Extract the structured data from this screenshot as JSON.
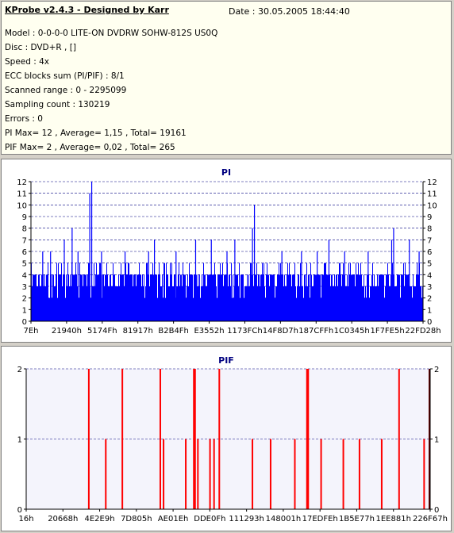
{
  "header": {
    "title": "KProbe v2.4.3 - Designed by Karr",
    "date": "Date : 30.05.2005 18:44:40",
    "lines": [
      "Model : 0-0-0-0 LITE-ON DVDRW SOHW-812S  US0Q",
      "Disc : DVD+R ,  []",
      "Speed : 4x",
      "ECC blocks sum (PI/PIF) : 8/1",
      "Scanned range : 0 - 2295099",
      "Sampling count : 130219",
      "Errors : 0",
      "PI Max= 12 , Average= 1,15 , Total= 19161",
      "PIF Max= 2 , Average= 0,02 , Total= 265"
    ]
  },
  "colors": {
    "pi_fill": "#0000ff",
    "pif_bar": "#ff0000",
    "title_color": "#000080",
    "grid": "#000080"
  },
  "chart_data": [
    {
      "type": "bar",
      "title": "PI",
      "ylim": [
        0,
        12
      ],
      "yticks": [
        0,
        1,
        2,
        3,
        4,
        5,
        6,
        7,
        8,
        9,
        10,
        11,
        12
      ],
      "xtick_labels": [
        "7Eh",
        "21940h",
        "5174Fh",
        "81917h",
        "B2B4Fh",
        "E3552h",
        "1173FCh",
        "14F8D7h",
        "187CFFh",
        "1C0345h",
        "1F7FE5h",
        "22FD28h"
      ],
      "baseline": 3,
      "base_fluctuation": [
        3,
        4
      ],
      "spikes": [
        {
          "x": 0.155,
          "y": 12
        },
        {
          "x": 0.15,
          "y": 11
        },
        {
          "x": 0.57,
          "y": 10
        },
        {
          "x": 0.925,
          "y": 8
        },
        {
          "x": 0.92,
          "y": 7
        },
        {
          "x": 0.105,
          "y": 8
        },
        {
          "x": 0.085,
          "y": 7
        },
        {
          "x": 0.315,
          "y": 7
        },
        {
          "x": 0.42,
          "y": 7
        },
        {
          "x": 0.46,
          "y": 7
        },
        {
          "x": 0.52,
          "y": 7
        },
        {
          "x": 0.565,
          "y": 8
        },
        {
          "x": 0.76,
          "y": 7
        },
        {
          "x": 0.965,
          "y": 7
        },
        {
          "x": 0.03,
          "y": 6
        },
        {
          "x": 0.05,
          "y": 6
        },
        {
          "x": 0.12,
          "y": 6
        },
        {
          "x": 0.18,
          "y": 6
        },
        {
          "x": 0.24,
          "y": 6
        },
        {
          "x": 0.3,
          "y": 6
        },
        {
          "x": 0.37,
          "y": 6
        },
        {
          "x": 0.5,
          "y": 6
        },
        {
          "x": 0.64,
          "y": 6
        },
        {
          "x": 0.69,
          "y": 6
        },
        {
          "x": 0.73,
          "y": 6
        },
        {
          "x": 0.8,
          "y": 6
        },
        {
          "x": 0.86,
          "y": 6
        },
        {
          "x": 0.99,
          "y": 6
        }
      ]
    },
    {
      "type": "bar",
      "title": "PIF",
      "ylim": [
        0,
        2
      ],
      "yticks": [
        0,
        1,
        2
      ],
      "xtick_labels": [
        "16h",
        "20668h",
        "4E2E9h",
        "7D805h",
        "AE01Eh",
        "DDE0Fh",
        "111293h",
        "148001h",
        "17EDFEh",
        "1B5E77h",
        "1EE881h",
        "226F67h"
      ],
      "bars": [
        {
          "x": 0.155,
          "y": 2
        },
        {
          "x": 0.238,
          "y": 2
        },
        {
          "x": 0.332,
          "y": 2
        },
        {
          "x": 0.415,
          "y": 2
        },
        {
          "x": 0.418,
          "y": 2
        },
        {
          "x": 0.478,
          "y": 2
        },
        {
          "x": 0.695,
          "y": 2
        },
        {
          "x": 0.698,
          "y": 2
        },
        {
          "x": 0.923,
          "y": 2
        },
        {
          "x": 0.197,
          "y": 1
        },
        {
          "x": 0.34,
          "y": 1
        },
        {
          "x": 0.395,
          "y": 1
        },
        {
          "x": 0.425,
          "y": 1
        },
        {
          "x": 0.455,
          "y": 1
        },
        {
          "x": 0.465,
          "y": 1
        },
        {
          "x": 0.56,
          "y": 1
        },
        {
          "x": 0.605,
          "y": 1
        },
        {
          "x": 0.665,
          "y": 1
        },
        {
          "x": 0.73,
          "y": 1
        },
        {
          "x": 0.785,
          "y": 1
        },
        {
          "x": 0.825,
          "y": 1
        },
        {
          "x": 0.88,
          "y": 1
        },
        {
          "x": 0.985,
          "y": 1
        }
      ],
      "end_marker_x": 1.0
    }
  ]
}
